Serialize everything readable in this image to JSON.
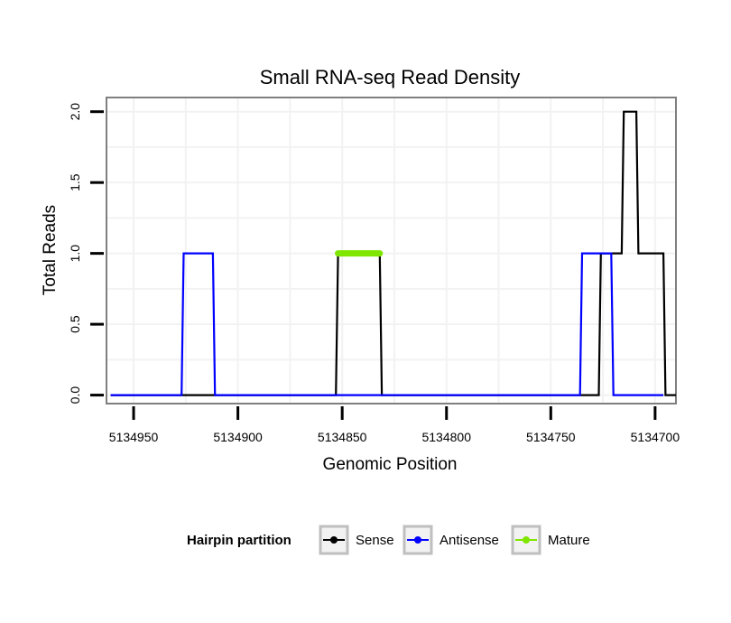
{
  "chart_data": {
    "type": "line",
    "title": "Small RNA-seq Read Density",
    "xlabel": "Genomic Position",
    "ylabel": "Total Reads",
    "xlim": [
      5134963,
      5134690
    ],
    "x_reversed": true,
    "ylim": [
      -0.06,
      2.1
    ],
    "x_ticks": [
      5134950,
      5134900,
      5134850,
      5134800,
      5134750,
      5134700
    ],
    "x_tick_labels": [
      "5134950",
      "5134900",
      "5134850",
      "5134800",
      "5134750",
      "5134700"
    ],
    "y_ticks": [
      0.0,
      0.5,
      1.0,
      1.5,
      2.0
    ],
    "y_tick_labels": [
      "0.0",
      "0.5",
      "1.0",
      "1.5",
      "2.0"
    ],
    "grid": true,
    "legend": {
      "title": "Hairpin partition",
      "position": "bottom",
      "entries": [
        {
          "label": "Sense",
          "color": "#000000"
        },
        {
          "label": "Antisense",
          "color": "#0000ff"
        },
        {
          "label": "Mature",
          "color": "#7fe600"
        }
      ]
    },
    "series": [
      {
        "name": "Sense",
        "color": "#000000",
        "x": [
          5134961,
          5134853,
          5134852,
          5134832,
          5134831,
          5134727,
          5134726,
          5134716,
          5134715,
          5134709,
          5134708,
          5134702,
          5134701,
          5134696,
          5134695,
          5134690
        ],
        "y": [
          0,
          0,
          1,
          1,
          0,
          0,
          1,
          1,
          2,
          2,
          1,
          1,
          1,
          1,
          0,
          0
        ]
      },
      {
        "name": "Antisense",
        "color": "#0000ff",
        "x": [
          5134961,
          5134927,
          5134926,
          5134912,
          5134911,
          5134736,
          5134735,
          5134721,
          5134720,
          5134696
        ],
        "y": [
          0,
          0,
          1,
          1,
          0,
          0,
          1,
          1,
          0,
          0
        ]
      },
      {
        "name": "Mature",
        "color": "#7fe600",
        "x": [
          5134852,
          5134832
        ],
        "y": [
          1,
          1
        ]
      }
    ]
  }
}
